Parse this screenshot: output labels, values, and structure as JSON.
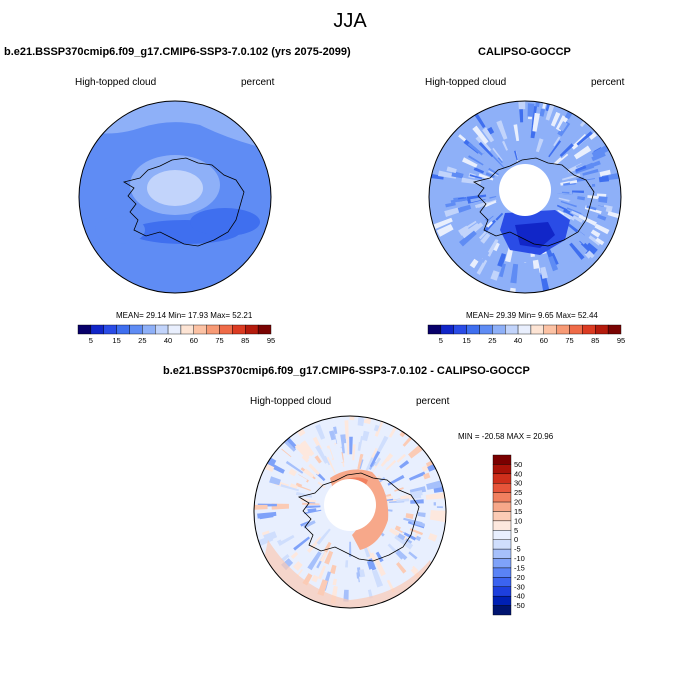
{
  "title": "JJA",
  "colors": {
    "seq": [
      "#08006a",
      "#1126c8",
      "#2a4ce6",
      "#3f6fef",
      "#5f8cf4",
      "#8eb0f8",
      "#c2d4fb",
      "#e9effd",
      "#fde4d4",
      "#fcc2a4",
      "#f79a75",
      "#ef6b48",
      "#db3b22",
      "#b51b0c",
      "#7a0403"
    ],
    "div": [
      "#001470",
      "#0020b4",
      "#1d3fdd",
      "#3b63f0",
      "#5a83f6",
      "#7fa2f9",
      "#a6c0fb",
      "#cfdefd",
      "#e8effe",
      "#fde8de",
      "#fbcbb5",
      "#f7a88a",
      "#f1805f",
      "#e7553a",
      "#cf2f1b",
      "#a81208",
      "#7a0000"
    ]
  },
  "panels": [
    {
      "title": "b.e21.BSSP370cmip6.f09_g17.CMIP6-SSP3-7.0.102 (yrs 2075-2099)",
      "left_label": "High-topped cloud",
      "right_label": "percent",
      "stats": "MEAN=  29.14  Min=  17.93  Max=  52.21"
    },
    {
      "title": "CALIPSO-GOCCP",
      "left_label": "High-topped cloud",
      "right_label": "percent",
      "stats": "MEAN=  29.39  Min=   9.65  Max=  52.44"
    },
    {
      "title": "b.e21.BSSP370cmip6.f09_g17.CMIP6-SSP3-7.0.102 - CALIPSO-GOCCP",
      "left_label": "High-topped cloud",
      "right_label": "percent",
      "stats": "MIN = -20.58 MAX =  20.96"
    }
  ],
  "chart_data": [
    {
      "type": "heatmap",
      "title": "b.e21.BSSP370cmip6.f09_g17.CMIP6-SSP3-7.0.102 (yrs 2075-2099)",
      "variable": "High-topped cloud",
      "units": "percent",
      "projection": "south polar stereographic",
      "mean": 29.14,
      "min": 17.93,
      "max": 52.21,
      "colorbar": {
        "levels": [
          5,
          10,
          15,
          20,
          25,
          30,
          40,
          50,
          60,
          70,
          75,
          80,
          85,
          90,
          95
        ],
        "tick_labels": [
          "5",
          "15",
          "25",
          "40",
          "60",
          "75",
          "85",
          "95"
        ]
      }
    },
    {
      "type": "heatmap",
      "title": "CALIPSO-GOCCP",
      "variable": "High-topped cloud",
      "units": "percent",
      "projection": "south polar stereographic",
      "mean": 29.39,
      "min": 9.65,
      "max": 52.44,
      "colorbar": {
        "levels": [
          5,
          10,
          15,
          20,
          25,
          30,
          40,
          50,
          60,
          70,
          75,
          80,
          85,
          90,
          95
        ],
        "tick_labels": [
          "5",
          "15",
          "25",
          "40",
          "60",
          "75",
          "85",
          "95"
        ]
      }
    },
    {
      "type": "heatmap",
      "title": "b.e21.BSSP370cmip6.f09_g17.CMIP6-SSP3-7.0.102 - CALIPSO-GOCCP",
      "variable": "High-topped cloud",
      "units": "percent",
      "projection": "south polar stereographic",
      "min": -20.58,
      "max": 20.96,
      "colorbar": {
        "levels": [
          50,
          40,
          30,
          25,
          20,
          15,
          10,
          5,
          0,
          -5,
          -10,
          -15,
          -20,
          -25,
          -30,
          -40,
          -50
        ],
        "tick_labels": [
          "50",
          "40",
          "30",
          "25",
          "20",
          "15",
          "10",
          "5",
          "0",
          "-5",
          "-10",
          "-15",
          "-20",
          "-30",
          "-40",
          "-50"
        ]
      }
    }
  ]
}
